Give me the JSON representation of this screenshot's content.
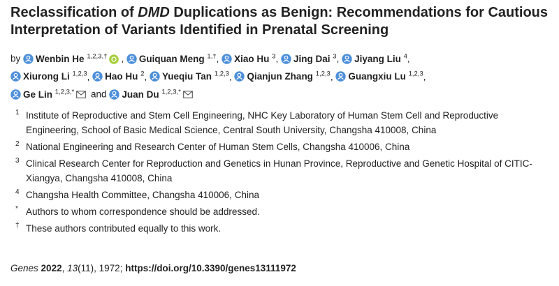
{
  "title": {
    "before": "Reclassification of",
    "italic": "DMD",
    "after": "Duplications as Benign: Recommendations for Cautious Interpretation of Variants Identified in Prenatal Screening"
  },
  "by": "by",
  "and": "and",
  "authors": [
    {
      "name": "Wenbin He",
      "sup": "1,2,3,†"
    },
    {
      "name": "Guiquan Meng",
      "sup": "1,†"
    },
    {
      "name": "Xiao Hu",
      "sup": "3"
    },
    {
      "name": "Jing Dai",
      "sup": "3"
    },
    {
      "name": "Jiyang Liu",
      "sup": "4"
    },
    {
      "name": "Xiurong Li",
      "sup": "1,2,3"
    },
    {
      "name": "Hao Hu",
      "sup": "2"
    },
    {
      "name": "Yueqiu Tan",
      "sup": "1,2,3"
    },
    {
      "name": "Qianjun Zhang",
      "sup": "1,2,3"
    },
    {
      "name": "Guangxiu Lu",
      "sup": "1,2,3"
    },
    {
      "name": "Ge Lin",
      "sup": "1,2,3,*"
    },
    {
      "name": "Juan Du",
      "sup": "1,2,3,*"
    }
  ],
  "affiliations": [
    {
      "marker": "1",
      "text": "Institute of Reproductive and Stem Cell Engineering, NHC Key Laboratory of Human Stem Cell and Reproductive Engineering, School of Basic Medical Science, Central South University, Changsha 410008, China"
    },
    {
      "marker": "2",
      "text": "National Engineering and Research Center of Human Stem Cells, Changsha 410006, China"
    },
    {
      "marker": "3",
      "text": "Clinical Research Center for Reproduction and Genetics in Hunan Province, Reproductive and Genetic Hospital of CITIC-Xiangya, Changsha 410008, China"
    },
    {
      "marker": "4",
      "text": "Changsha Health Committee, Changsha 410006, China"
    },
    {
      "marker": "*",
      "text": "Authors to whom correspondence should be addressed."
    },
    {
      "marker": "†",
      "text": "These authors contributed equally to this work."
    }
  ],
  "citation": {
    "journal": "Genes",
    "year": "2022",
    "sep": ",",
    "volume": "13",
    "rest": "(11), 1972;",
    "doi": "https://doi.org/10.3390/genes13111972"
  }
}
